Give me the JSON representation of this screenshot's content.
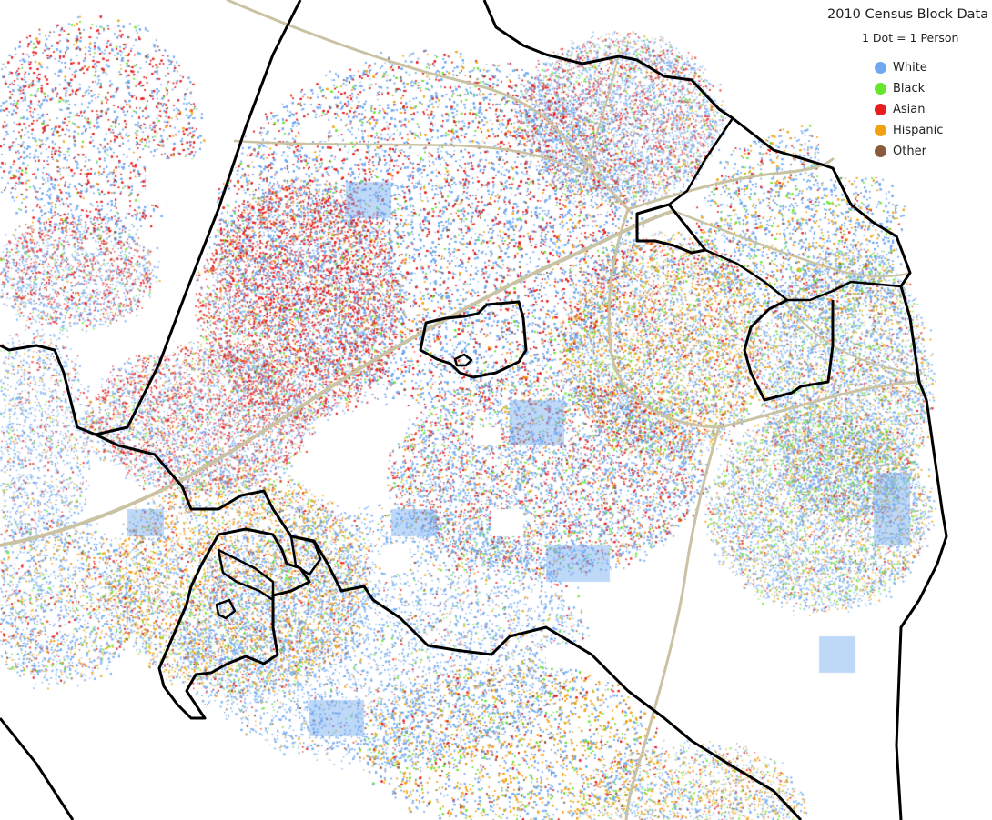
{
  "legend": {
    "title": "2010 Census Block Data",
    "scale": "1 Dot = 1 Person",
    "items": [
      {
        "label": "White",
        "color": "#6fa8f0"
      },
      {
        "label": "Black",
        "color": "#66e62a"
      },
      {
        "label": "Asian",
        "color": "#e81d1d"
      },
      {
        "label": "Hispanic",
        "color": "#f2a20f"
      },
      {
        "label": "Other",
        "color": "#8b5a3c"
      }
    ]
  },
  "map": {
    "background": "#ffffff",
    "road_color": "#c9c2a3",
    "boundary_color": "#000000"
  }
}
